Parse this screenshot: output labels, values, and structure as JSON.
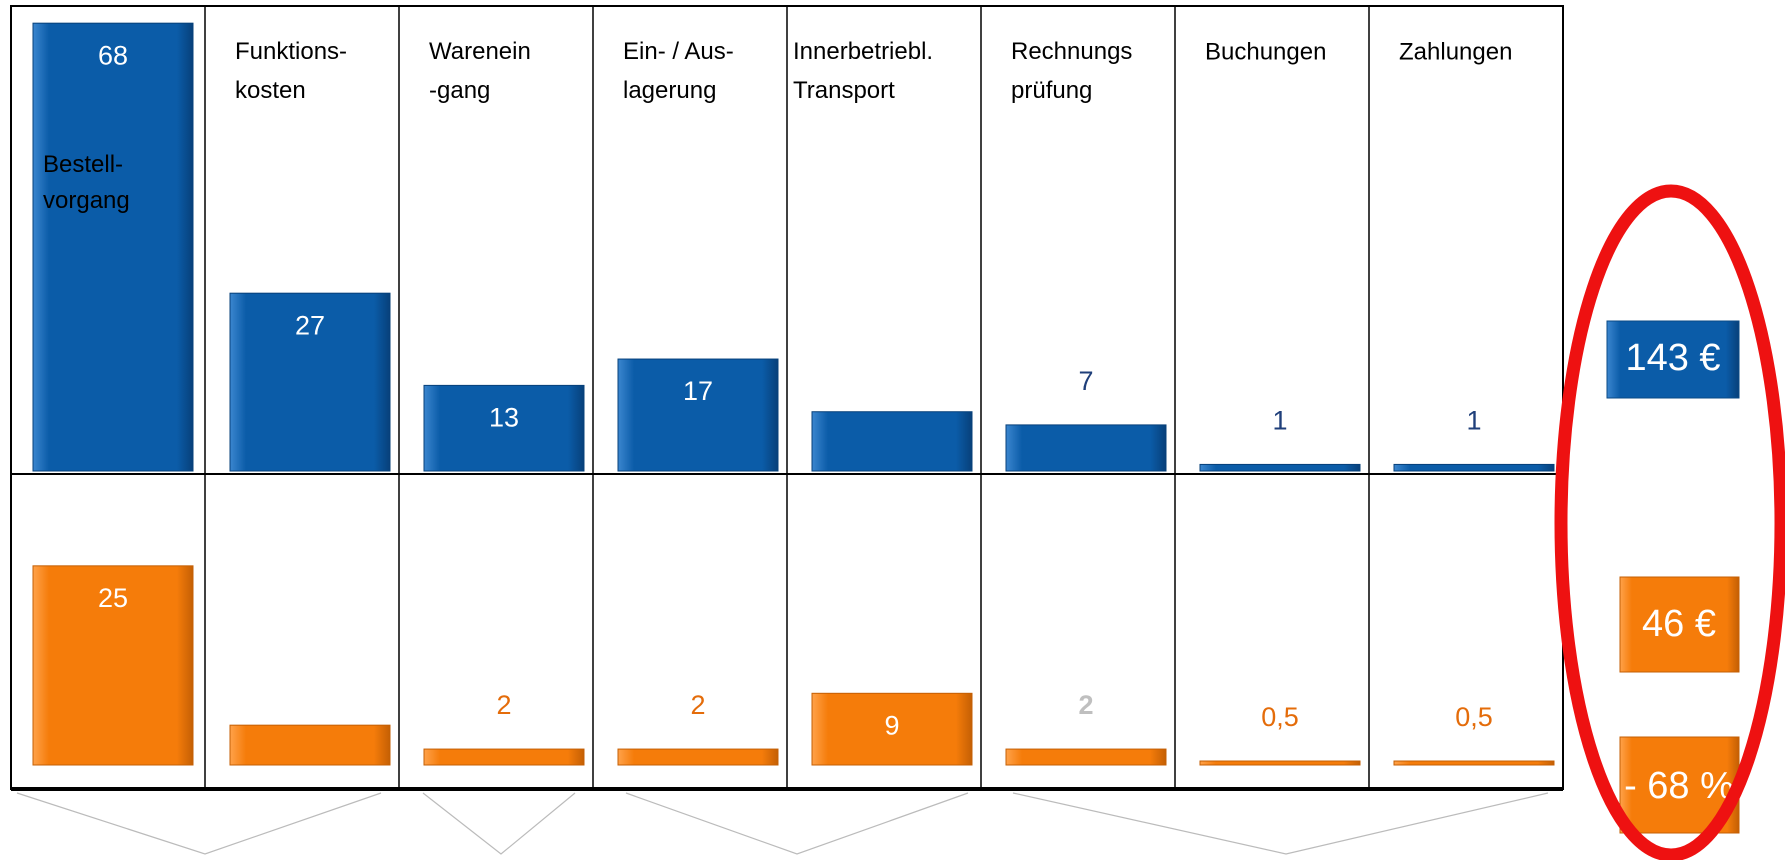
{
  "categories": [
    "Bestell-\nvorgang",
    "Funktions-\nkosten",
    "Warenein\n-gang",
    "Ein- / Aus-\nlagerung",
    "Innerbetriebl.\nTransport",
    "Rechnungs\nprüfung",
    "Buchungen",
    "Zahlungen"
  ],
  "chart_data": [
    {
      "type": "bar",
      "values": [
        68,
        27,
        13,
        17,
        9,
        7,
        1,
        1
      ],
      "color": "#0b5ca8",
      "ylim": [
        0,
        70
      ],
      "label_colors": [
        "#ffffff",
        "#ffffff",
        "#ffffff",
        "#ffffff",
        "#ffffff",
        "#1f3f7a",
        "#1f3f7a",
        "#1f3f7a"
      ]
    },
    {
      "type": "bar",
      "values": [
        25,
        5,
        2,
        2,
        9,
        2,
        0.5,
        0.5
      ],
      "value_labels": [
        "25",
        "5",
        "2",
        "2",
        "9",
        "2",
        "0,5",
        "0,5"
      ],
      "color": "#f57c0a",
      "ylim": [
        0,
        30
      ],
      "label_colors": [
        "#ffffff",
        "#ffffff",
        "#e46c0a",
        "#e46c0a",
        "#ffffff",
        "#bfbfbf",
        "#e46c0a",
        "#e46c0a"
      ]
    }
  ],
  "totals": {
    "before": "143 €",
    "after": "46 €",
    "change": "- 68 %"
  }
}
